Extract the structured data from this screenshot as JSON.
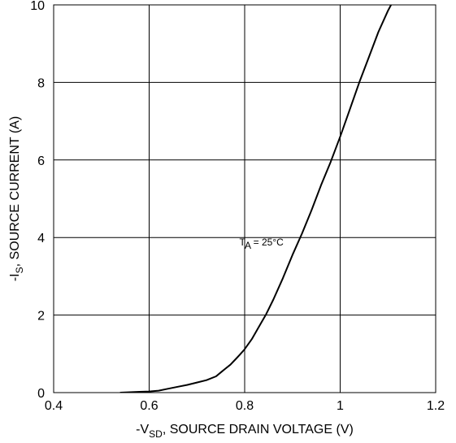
{
  "chart_data": {
    "type": "line",
    "title": "",
    "xlabel": {
      "prefix": "-V",
      "subscript": "SD",
      "suffix": ", SOURCE DRAIN VOLTAGE (V)"
    },
    "ylabel": {
      "prefix": "-I",
      "subscript": "S",
      "suffix": ", SOURCE CURRENT (A)"
    },
    "xlim": [
      0.4,
      1.2
    ],
    "ylim": [
      0,
      10
    ],
    "x_ticks": [
      "0.4",
      "0.6",
      "0.8",
      "1",
      "1.2"
    ],
    "y_ticks": [
      "0",
      "2",
      "4",
      "6",
      "8",
      "10"
    ],
    "grid": true,
    "annotation": {
      "prefix": "T",
      "subscript": "A",
      "suffix": " = 25°C",
      "x": 0.84,
      "y": 3.9
    },
    "series": [
      {
        "name": "",
        "color": "#000000",
        "x": [
          0.54,
          0.56,
          0.58,
          0.6,
          0.62,
          0.64,
          0.66,
          0.68,
          0.7,
          0.72,
          0.74,
          0.75,
          0.76,
          0.77,
          0.78,
          0.79,
          0.8,
          0.815,
          0.83,
          0.845,
          0.86,
          0.88,
          0.9,
          0.92,
          0.94,
          0.96,
          0.98,
          1.0,
          1.02,
          1.04,
          1.06,
          1.08,
          1.1,
          1.115
        ],
        "y": [
          0.0,
          0.01,
          0.02,
          0.03,
          0.05,
          0.1,
          0.15,
          0.2,
          0.26,
          0.32,
          0.42,
          0.52,
          0.62,
          0.72,
          0.85,
          0.98,
          1.12,
          1.38,
          1.7,
          2.02,
          2.4,
          2.95,
          3.55,
          4.1,
          4.7,
          5.35,
          5.95,
          6.6,
          7.3,
          8.0,
          8.65,
          9.3,
          9.85,
          10.2
        ]
      }
    ]
  }
}
